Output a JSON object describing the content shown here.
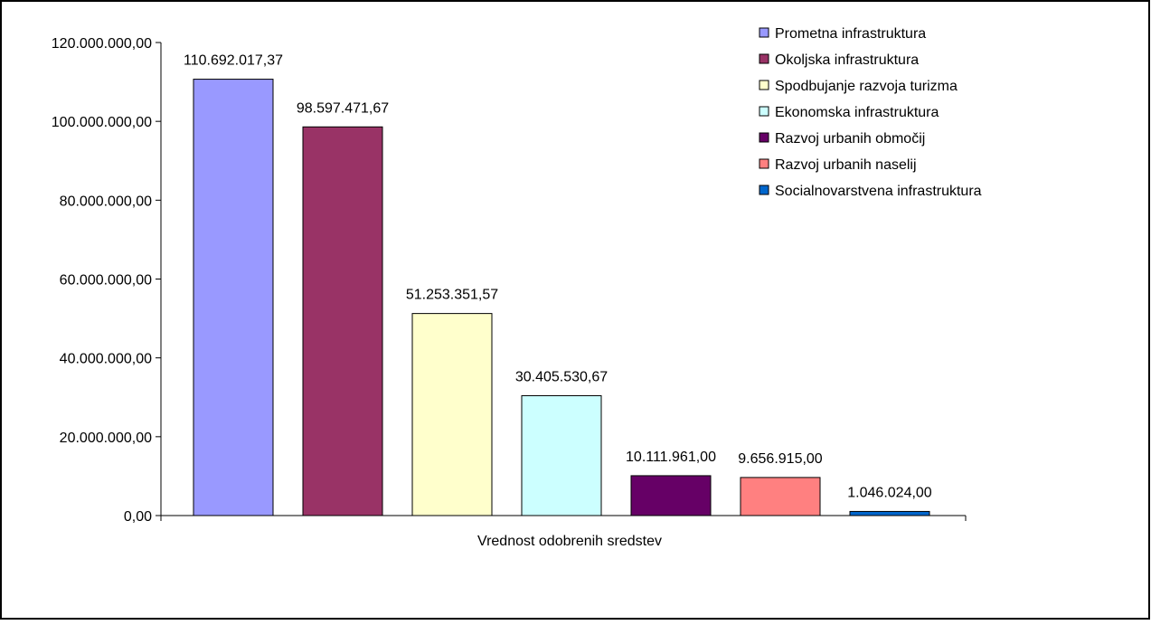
{
  "chart_data": {
    "type": "bar",
    "title": "",
    "xlabel": "Vrednost odobrenih sredstev",
    "ylabel": "",
    "ylim": [
      0,
      120000000
    ],
    "ytick_values": [
      0,
      20000000,
      40000000,
      60000000,
      80000000,
      100000000,
      120000000
    ],
    "ytick_labels": [
      "0,00",
      "20.000.000,00",
      "40.000.000,00",
      "60.000.000,00",
      "80.000.000,00",
      "100.000.000,00",
      "120.000.000,00"
    ],
    "grid": false,
    "legend_position": "top-right",
    "series": [
      {
        "name": "Prometna infrastruktura",
        "value": 110692017.37,
        "label": "110.692.017,37",
        "color": "#9999ff"
      },
      {
        "name": "Okoljska infrastruktura",
        "value": 98597471.67,
        "label": "98.597.471,67",
        "color": "#993366"
      },
      {
        "name": "Spodbujanje razvoja turizma",
        "value": 51253351.57,
        "label": "51.253.351,57",
        "color": "#ffffcc"
      },
      {
        "name": "Ekonomska infrastruktura",
        "value": 30405530.67,
        "label": "30.405.530,67",
        "color": "#ccffff"
      },
      {
        "name": "Razvoj urbanih območij",
        "value": 10111961.0,
        "label": "10.111.961,00",
        "color": "#660066"
      },
      {
        "name": "Razvoj urbanih naselij",
        "value": 9656915.0,
        "label": "9.656.915,00",
        "color": "#ff8080"
      },
      {
        "name": "Socialnovarstvena infrastruktura",
        "value": 1046024.0,
        "label": "1.046.024,00",
        "color": "#0066cc"
      }
    ]
  }
}
